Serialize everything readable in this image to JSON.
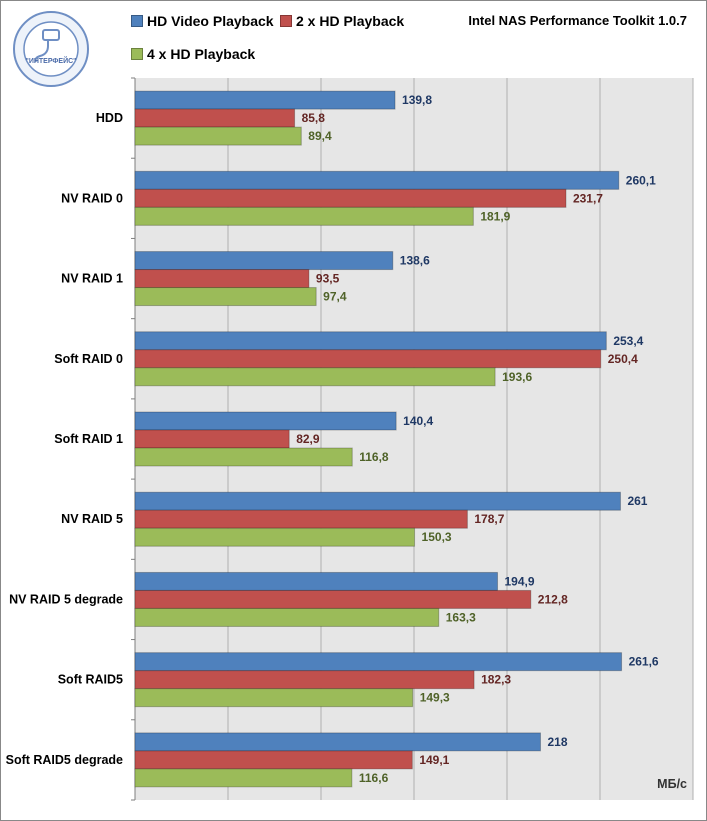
{
  "header": {
    "toolkit_title": "Intel NAS Performance Toolkit 1.0.7",
    "logo_text": "\"ИНТЕРФЕЙС\""
  },
  "chart_data": {
    "type": "bar",
    "orientation": "horizontal",
    "title": "Intel NAS Performance Toolkit 1.0.7",
    "xlabel": "МБ/с",
    "ylabel": "",
    "xlim": [
      0,
      300
    ],
    "x_grid_step": 50,
    "grid": true,
    "legend_position": "top",
    "categories": [
      "HDD",
      "NV RAID 0",
      "NV RAID 1",
      "Soft RAID 0",
      "Soft RAID 1",
      "NV RAID 5",
      "NV RAID 5 degrade",
      "Soft RAID5",
      "Soft RAID5 degrade"
    ],
    "series": [
      {
        "name": "HD Video Playback",
        "color": "#4f81bd",
        "label_color": "#1f3864",
        "values": [
          139.8,
          260.1,
          138.6,
          253.4,
          140.4,
          261,
          194.9,
          261.6,
          218
        ],
        "labels": [
          "139,8",
          "260,1",
          "138,6",
          "253,4",
          "140,4",
          "261",
          "194,9",
          "261,6",
          "218"
        ]
      },
      {
        "name": "2 x HD Playback",
        "color": "#c0504d",
        "label_color": "#632523",
        "values": [
          85.8,
          231.7,
          93.5,
          250.4,
          82.9,
          178.7,
          212.8,
          182.3,
          149.1
        ],
        "labels": [
          "85,8",
          "231,7",
          "93,5",
          "250,4",
          "82,9",
          "178,7",
          "212,8",
          "182,3",
          "149,1"
        ]
      },
      {
        "name": "4 x HD Playback",
        "color": "#9bbb59",
        "label_color": "#4f6228",
        "values": [
          89.4,
          181.9,
          97.4,
          193.6,
          116.8,
          150.3,
          163.3,
          149.3,
          116.6
        ],
        "labels": [
          "89,4",
          "181,9",
          "97,4",
          "193,6",
          "116,8",
          "150,3",
          "163,3",
          "149,3",
          "116,6"
        ]
      }
    ]
  }
}
